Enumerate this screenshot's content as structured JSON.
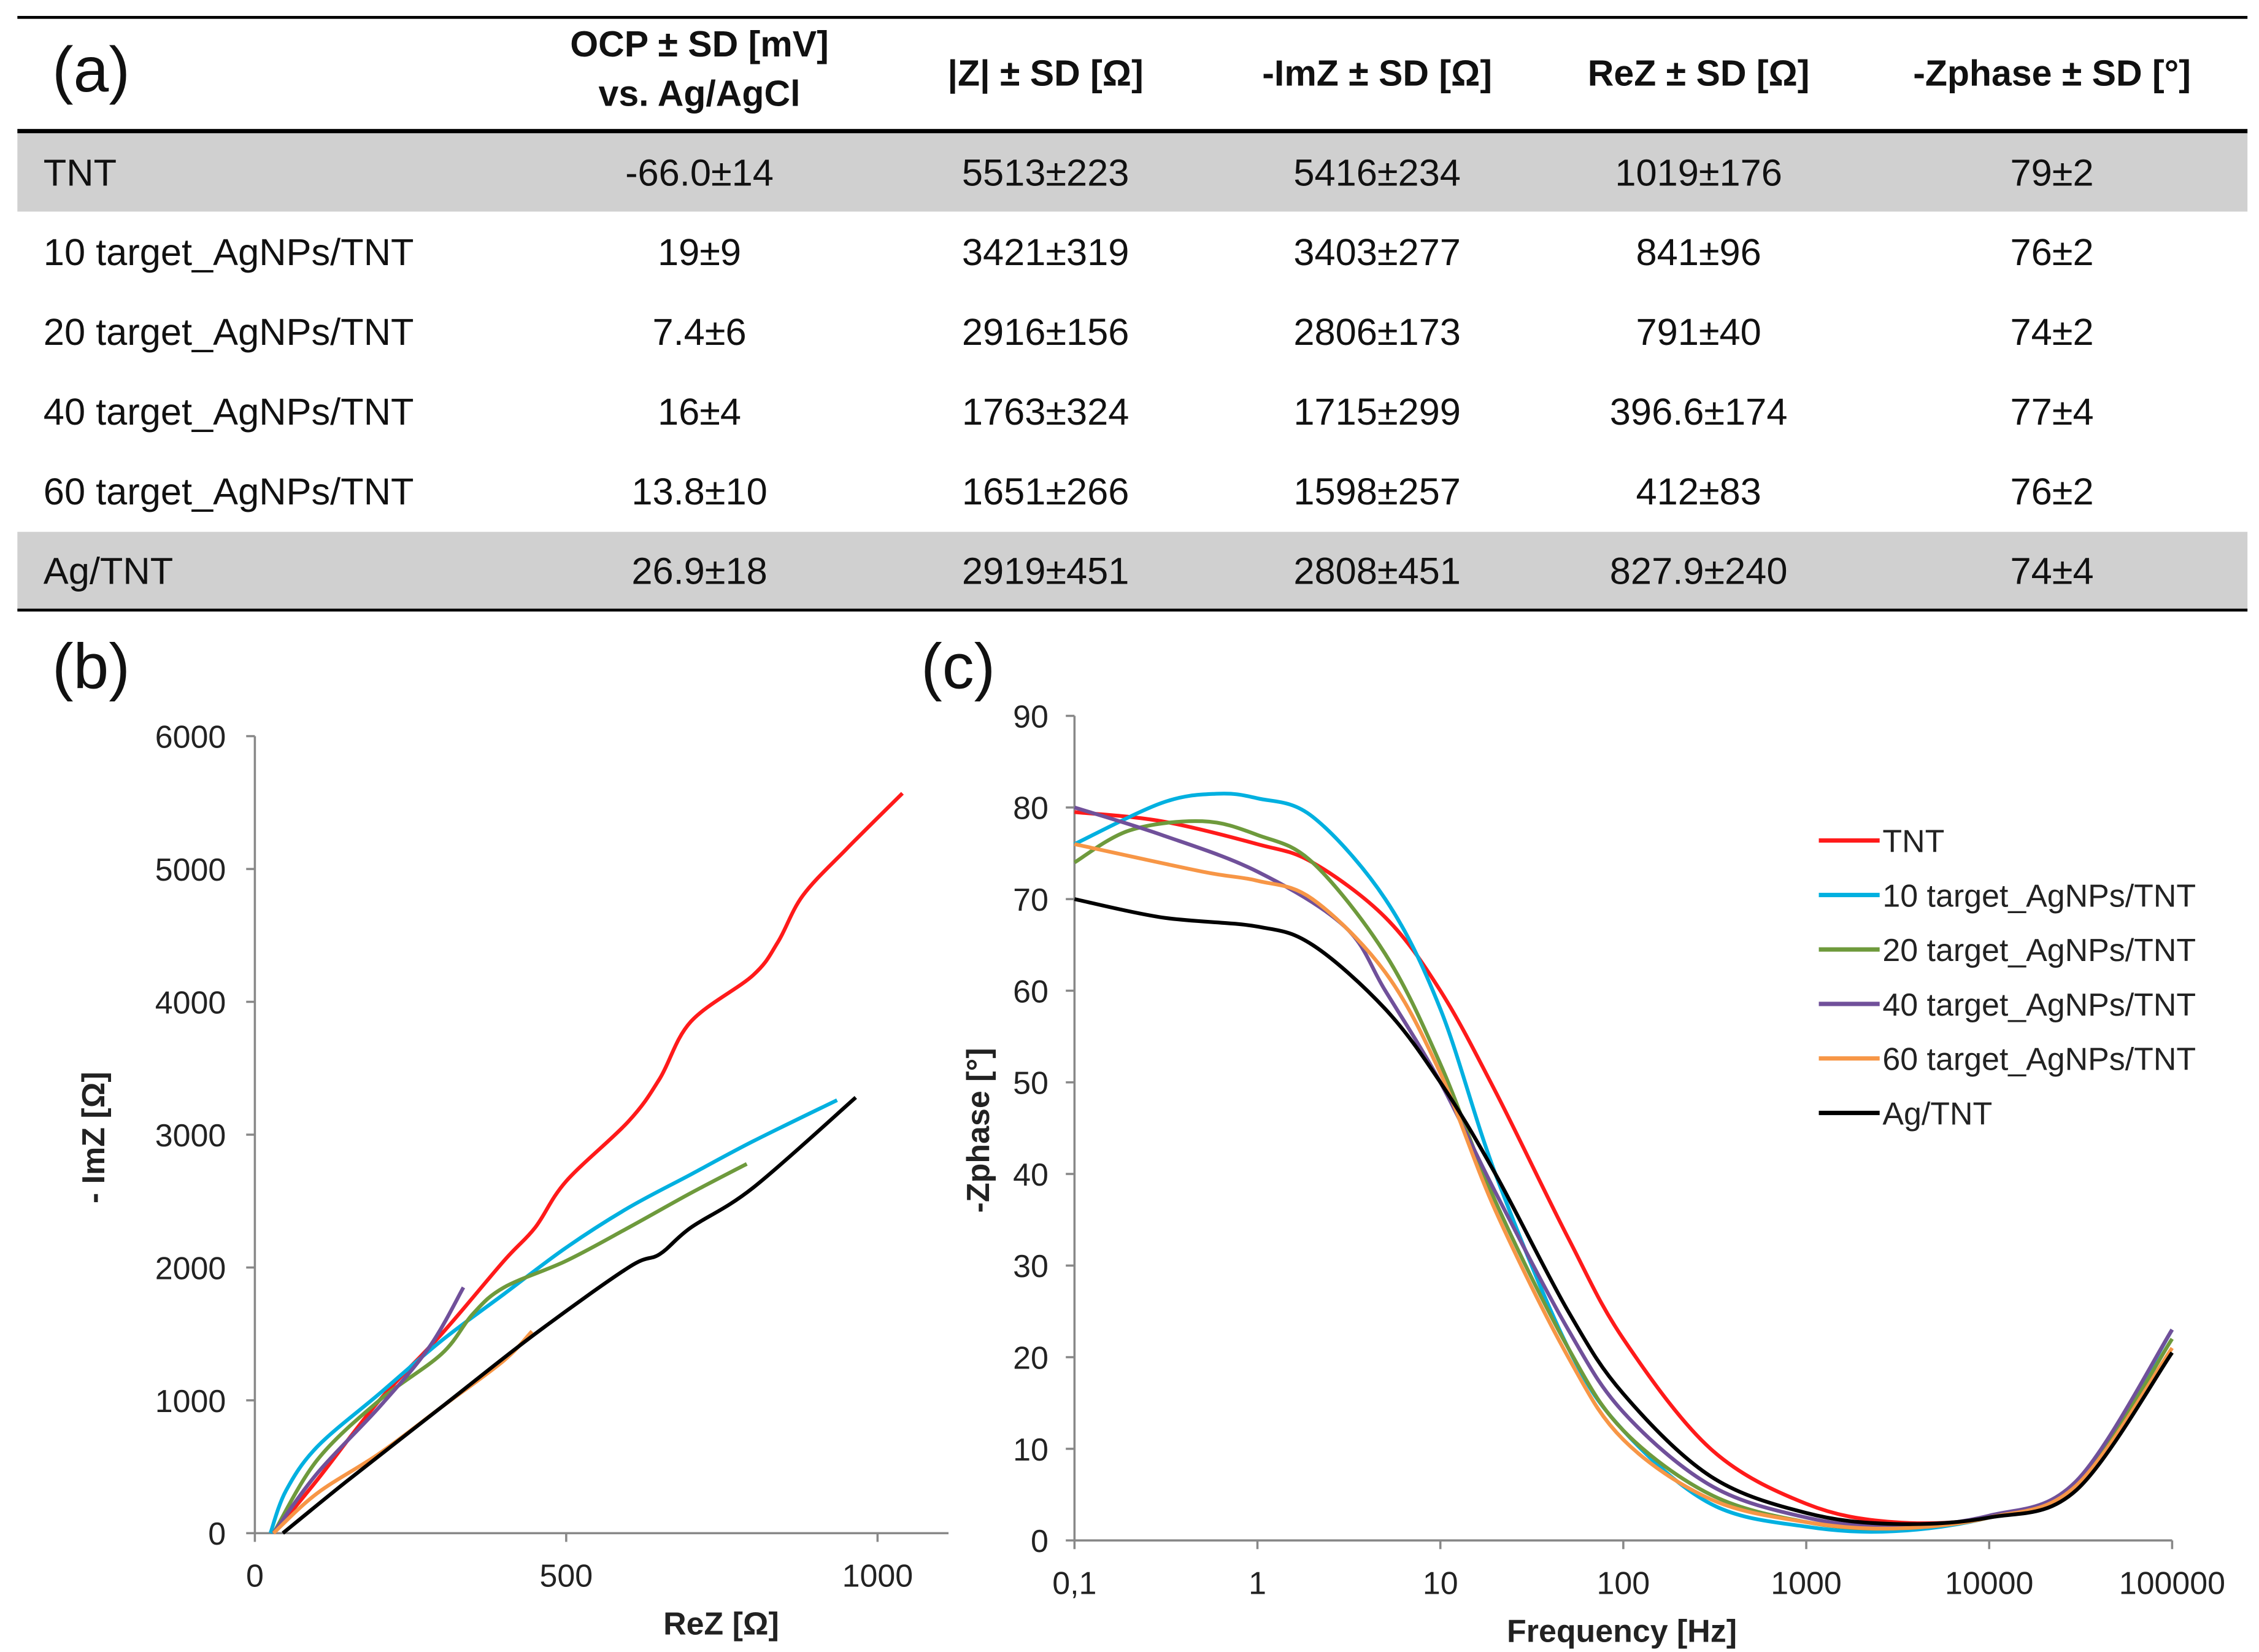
{
  "table": {
    "panel_label": "(a)",
    "headers": [
      "OCP ± SD [mV]",
      "vs. Ag/AgCl",
      "|Z| ± SD [Ω]",
      "-ImZ ± SD [Ω]",
      "ReZ ± SD [Ω]",
      "-Zphase ± SD [°]"
    ],
    "rows": [
      [
        "TNT",
        "-66.0±14",
        "5513±223",
        "5416±234",
        "1019±176",
        "79±2"
      ],
      [
        "10 target_AgNPs/TNT",
        "19±9",
        "3421±319",
        "3403±277",
        "841±96",
        "76±2"
      ],
      [
        "20 target_AgNPs/TNT",
        "7.4±6",
        "2916±156",
        "2806±173",
        "791±40",
        "74±2"
      ],
      [
        "40 target_AgNPs/TNT",
        "16±4",
        "1763±324",
        "1715±299",
        "396.6±174",
        "77±4"
      ],
      [
        "60 target_AgNPs/TNT",
        "13.8±10",
        "1651±266",
        "1598±257",
        "412±83",
        "76±2"
      ],
      [
        "Ag/TNT",
        "26.9±18",
        "2919±451",
        "2808±451",
        "827.9±240",
        "74±4"
      ]
    ]
  },
  "chart_data": [
    {
      "type": "line",
      "panel_label": "(b)",
      "title": "",
      "xlabel": "ReZ [Ω]",
      "ylabel": "- ImZ [Ω]",
      "xlim": [
        0,
        1130
      ],
      "ylim": [
        0,
        6000
      ],
      "xticks": [
        "0",
        "500",
        "1000"
      ],
      "xtick_values": [
        0,
        500,
        1000
      ],
      "yticks": [
        "0",
        "1000",
        "2000",
        "3000",
        "4000",
        "5000",
        "6000"
      ],
      "ytick_values": [
        0,
        1000,
        2000,
        3000,
        4000,
        5000,
        6000
      ],
      "series": [
        {
          "name": "TNT",
          "color": "#ff1a1a",
          "points": [
            [
              30,
              0
            ],
            [
              100,
              400
            ],
            [
              200,
              1000
            ],
            [
              300,
              1500
            ],
            [
              400,
              2050
            ],
            [
              450,
              2300
            ],
            [
              500,
              2650
            ],
            [
              600,
              3100
            ],
            [
              650,
              3420
            ],
            [
              700,
              3850
            ],
            [
              800,
              4200
            ],
            [
              840,
              4450
            ],
            [
              880,
              4800
            ],
            [
              950,
              5150
            ],
            [
              1040,
              5570
            ]
          ]
        },
        {
          "name": "10 target_AgNPs/TNT",
          "color": "#00b0e0",
          "points": [
            [
              25,
              0
            ],
            [
              50,
              320
            ],
            [
              100,
              650
            ],
            [
              200,
              1050
            ],
            [
              300,
              1450
            ],
            [
              400,
              1800
            ],
            [
              500,
              2150
            ],
            [
              600,
              2450
            ],
            [
              700,
              2700
            ],
            [
              800,
              2950
            ],
            [
              935,
              3260
            ]
          ]
        },
        {
          "name": "20 target_AgNPs/TNT",
          "color": "#6e9a3c",
          "points": [
            [
              30,
              0
            ],
            [
              100,
              550
            ],
            [
              200,
              1000
            ],
            [
              300,
              1350
            ],
            [
              350,
              1650
            ],
            [
              400,
              1850
            ],
            [
              500,
              2050
            ],
            [
              600,
              2300
            ],
            [
              700,
              2560
            ],
            [
              790,
              2780
            ]
          ]
        },
        {
          "name": "40 target_AgNPs/TNT",
          "color": "#70509a",
          "points": [
            [
              30,
              0
            ],
            [
              100,
              450
            ],
            [
              200,
              950
            ],
            [
              280,
              1400
            ],
            [
              335,
              1850
            ]
          ]
        },
        {
          "name": "60 target_AgNPs/TNT",
          "color": "#f79646",
          "points": [
            [
              30,
              0
            ],
            [
              100,
              300
            ],
            [
              200,
              600
            ],
            [
              300,
              950
            ],
            [
              400,
              1300
            ],
            [
              445,
              1520
            ]
          ]
        },
        {
          "name": "Ag/TNT",
          "color": "#000000",
          "points": [
            [
              45,
              0
            ],
            [
              150,
              400
            ],
            [
              300,
              950
            ],
            [
              450,
              1500
            ],
            [
              600,
              2000
            ],
            [
              650,
              2100
            ],
            [
              700,
              2300
            ],
            [
              800,
              2600
            ],
            [
              965,
              3280
            ]
          ]
        }
      ]
    },
    {
      "type": "line",
      "panel_label": "(c)",
      "title": "",
      "xlabel": "Frequency [Hz]",
      "ylabel": "-Zphase [°]",
      "xscale": "log",
      "xlim": [
        0.1,
        100000
      ],
      "ylim": [
        0,
        90
      ],
      "xticks": [
        "0,1",
        "1",
        "10",
        "100",
        "1000",
        "10000",
        "100000"
      ],
      "xtick_values": [
        0.1,
        1,
        10,
        100,
        1000,
        10000,
        100000
      ],
      "yticks": [
        "0",
        "10",
        "20",
        "30",
        "40",
        "50",
        "60",
        "70",
        "80",
        "90"
      ],
      "ytick_values": [
        0,
        10,
        20,
        30,
        40,
        50,
        60,
        70,
        80,
        90
      ],
      "legend": "right",
      "series": [
        {
          "name": "TNT",
          "color": "#ff1a1a",
          "points": [
            [
              0.1,
              79.5
            ],
            [
              0.3,
              78.5
            ],
            [
              1,
              76
            ],
            [
              2,
              74
            ],
            [
              5,
              68
            ],
            [
              10,
              60
            ],
            [
              20,
              49
            ],
            [
              50,
              33
            ],
            [
              100,
              22
            ],
            [
              300,
              10
            ],
            [
              1000,
              4
            ],
            [
              3000,
              2
            ],
            [
              10000,
              2.5
            ],
            [
              30000,
              6
            ],
            [
              100000,
              23
            ]
          ]
        },
        {
          "name": "10 target_AgNPs/TNT",
          "color": "#00b0e0",
          "points": [
            [
              0.1,
              76
            ],
            [
              0.3,
              80.5
            ],
            [
              0.6,
              81.5
            ],
            [
              1,
              81
            ],
            [
              2,
              79
            ],
            [
              5,
              70
            ],
            [
              10,
              58
            ],
            [
              20,
              40
            ],
            [
              50,
              21
            ],
            [
              100,
              12
            ],
            [
              300,
              4
            ],
            [
              1000,
              1.5
            ],
            [
              3000,
              1
            ],
            [
              10000,
              2.5
            ],
            [
              30000,
              6
            ],
            [
              100000,
              23
            ]
          ]
        },
        {
          "name": "20 target_AgNPs/TNT",
          "color": "#6e9a3c",
          "points": [
            [
              0.1,
              74
            ],
            [
              0.2,
              77.5
            ],
            [
              0.5,
              78.5
            ],
            [
              1,
              77
            ],
            [
              2,
              74
            ],
            [
              5,
              64
            ],
            [
              10,
              52
            ],
            [
              20,
              37
            ],
            [
              50,
              21
            ],
            [
              100,
              12
            ],
            [
              300,
              5
            ],
            [
              1000,
              2
            ],
            [
              3000,
              1.3
            ],
            [
              10000,
              2.5
            ],
            [
              30000,
              6
            ],
            [
              100000,
              22
            ]
          ]
        },
        {
          "name": "40 target_AgNPs/TNT",
          "color": "#70509a",
          "points": [
            [
              0.1,
              80
            ],
            [
              0.3,
              77
            ],
            [
              1,
              73
            ],
            [
              3,
              67
            ],
            [
              5,
              60
            ],
            [
              10,
              50
            ],
            [
              20,
              38
            ],
            [
              50,
              23
            ],
            [
              100,
              14
            ],
            [
              300,
              6
            ],
            [
              1000,
              2.5
            ],
            [
              3000,
              1.5
            ],
            [
              10000,
              2.7
            ],
            [
              30000,
              6.5
            ],
            [
              100000,
              23
            ]
          ]
        },
        {
          "name": "60 target_AgNPs/TNT",
          "color": "#f79646",
          "points": [
            [
              0.1,
              76
            ],
            [
              0.5,
              73
            ],
            [
              1,
              72
            ],
            [
              2,
              70
            ],
            [
              5,
              62
            ],
            [
              10,
              51
            ],
            [
              20,
              36
            ],
            [
              50,
              20
            ],
            [
              100,
              11
            ],
            [
              300,
              4.5
            ],
            [
              1000,
              2
            ],
            [
              3000,
              1.3
            ],
            [
              10000,
              2.5
            ],
            [
              30000,
              6
            ],
            [
              100000,
              21
            ]
          ]
        },
        {
          "name": "Ag/TNT",
          "color": "#000000",
          "points": [
            [
              0.1,
              70
            ],
            [
              0.3,
              68
            ],
            [
              1,
              67
            ],
            [
              2,
              65
            ],
            [
              5,
              58
            ],
            [
              10,
              50
            ],
            [
              20,
              40
            ],
            [
              50,
              25
            ],
            [
              100,
              16
            ],
            [
              300,
              7
            ],
            [
              1000,
              3
            ],
            [
              3000,
              1.8
            ],
            [
              10000,
              2.5
            ],
            [
              30000,
              5.5
            ],
            [
              100000,
              20.5
            ]
          ]
        }
      ]
    }
  ]
}
